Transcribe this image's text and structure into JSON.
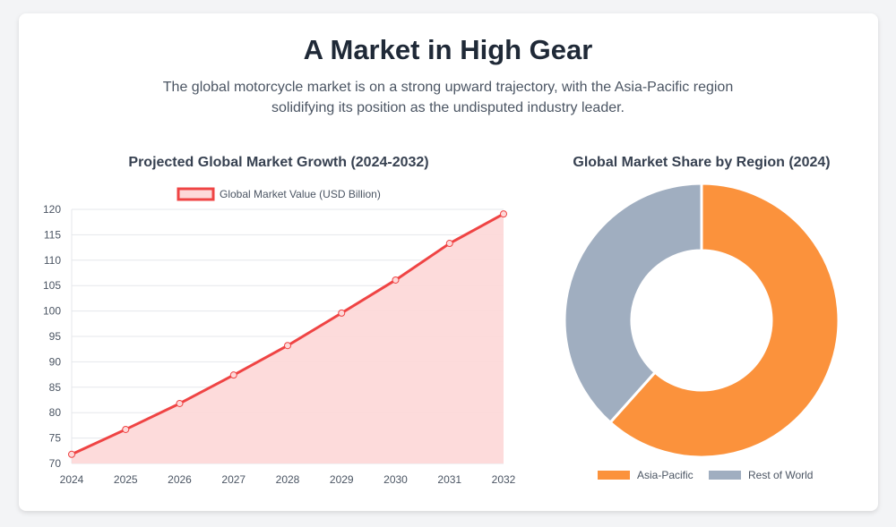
{
  "header": {
    "title": "A Market in High Gear",
    "subtitle": "The global motorcycle market is on a strong upward trajectory, with the Asia-Pacific region solidifying its position as the undisputed industry leader."
  },
  "chart_data": [
    {
      "type": "line",
      "title": "Projected Global Market Growth (2024-2032)",
      "x": [
        "2024",
        "2025",
        "2026",
        "2027",
        "2028",
        "2029",
        "2030",
        "2031",
        "2032"
      ],
      "series": [
        {
          "name": "Global Market Value (USD Billion)",
          "values": [
            71.8,
            76.7,
            81.8,
            87.4,
            93.2,
            99.6,
            106.1,
            113.3,
            119.1
          ],
          "color": "#ef4444",
          "fill": "#fdd9d9"
        }
      ],
      "ylim": [
        70,
        120
      ],
      "yticks": [
        "70",
        "75",
        "80",
        "85",
        "90",
        "95",
        "100",
        "105",
        "110",
        "115",
        "120"
      ],
      "grid": true,
      "legend": "top"
    },
    {
      "type": "pie",
      "title": "Global Market Share by Region (2024)",
      "labels": [
        "Asia-Pacific",
        "Rest of World"
      ],
      "values": [
        61.6,
        38.4
      ],
      "colors": [
        "#fb923c",
        "#a0aec0"
      ],
      "legend": "bottom"
    }
  ]
}
